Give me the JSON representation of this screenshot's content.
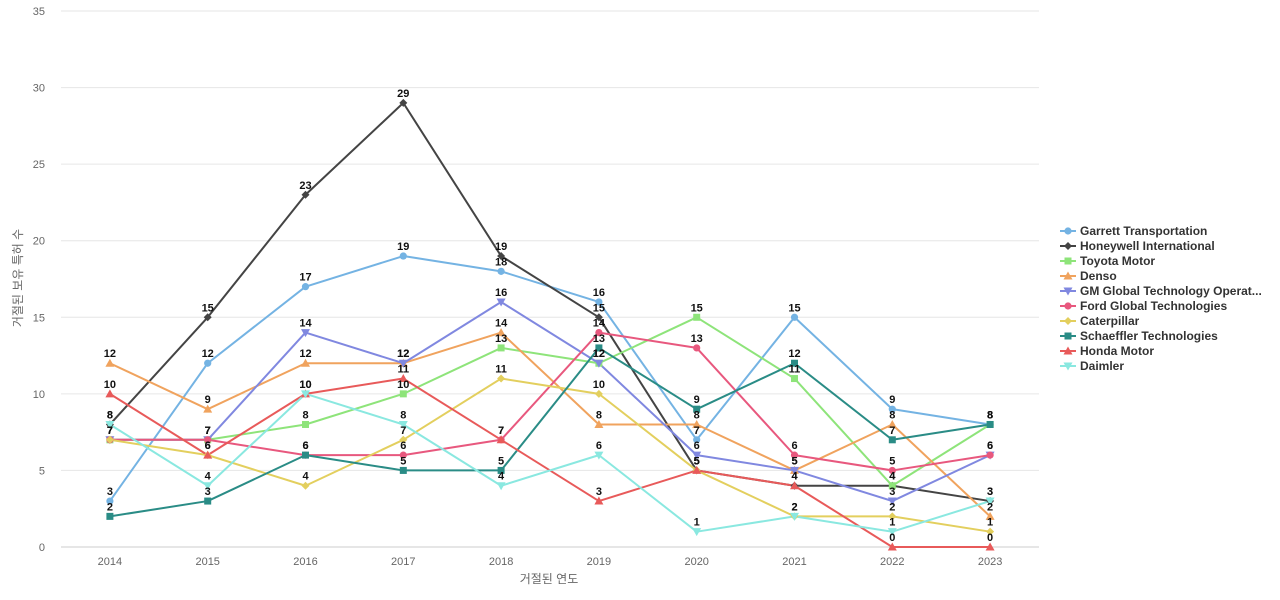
{
  "chart_data": {
    "type": "line",
    "xlabel": "거절된 연도",
    "ylabel": "거절된 보유 특허 수",
    "x": [
      "2014",
      "2015",
      "2016",
      "2017",
      "2018",
      "2019",
      "2020",
      "2021",
      "2022",
      "2023"
    ],
    "ylim": [
      0,
      35
    ],
    "yticks": [
      0,
      5,
      10,
      15,
      20,
      25,
      30,
      35
    ],
    "grid": true,
    "legend_position": "right",
    "series": [
      {
        "name": "Garrett Transportation",
        "color": "#74b3e3",
        "marker": "circle",
        "values": [
          3,
          12,
          17,
          19,
          18,
          16,
          7,
          15,
          9,
          8
        ]
      },
      {
        "name": "Honeywell International",
        "color": "#444444",
        "marker": "diamond",
        "values": [
          8,
          15,
          23,
          29,
          19,
          15,
          5,
          4,
          4,
          3
        ]
      },
      {
        "name": "Toyota Motor",
        "color": "#8ee47a",
        "marker": "square",
        "values": [
          7,
          7,
          8,
          10,
          13,
          12,
          15,
          11,
          4,
          8
        ]
      },
      {
        "name": "Denso",
        "color": "#f0a35e",
        "marker": "triangle-up",
        "values": [
          12,
          9,
          12,
          12,
          14,
          8,
          8,
          5,
          8,
          2
        ]
      },
      {
        "name": "GM Global Technology Operations",
        "legend_label": "GM Global Technology Operat...",
        "color": "#8088e0",
        "marker": "triangle-down",
        "values": [
          7,
          7,
          14,
          12,
          16,
          12,
          6,
          5,
          3,
          6
        ]
      },
      {
        "name": "Ford Global Technologies",
        "color": "#e8587e",
        "marker": "circle",
        "values": [
          7,
          7,
          6,
          6,
          7,
          14,
          13,
          6,
          5,
          6
        ]
      },
      {
        "name": "Caterpillar",
        "color": "#e3cf5e",
        "marker": "diamond",
        "values": [
          7,
          6,
          4,
          7,
          11,
          10,
          5,
          2,
          2,
          1
        ]
      },
      {
        "name": "Schaeffler Technologies",
        "color": "#2a8c86",
        "marker": "square",
        "values": [
          2,
          3,
          6,
          5,
          5,
          13,
          9,
          12,
          7,
          8
        ]
      },
      {
        "name": "Honda Motor",
        "color": "#e85a5a",
        "marker": "triangle-up",
        "values": [
          10,
          6,
          10,
          11,
          7,
          3,
          5,
          4,
          0,
          0
        ]
      },
      {
        "name": "Daimler",
        "color": "#8ae8e0",
        "marker": "triangle-down",
        "values": [
          8,
          4,
          10,
          8,
          4,
          6,
          1,
          2,
          1,
          3
        ]
      }
    ]
  }
}
